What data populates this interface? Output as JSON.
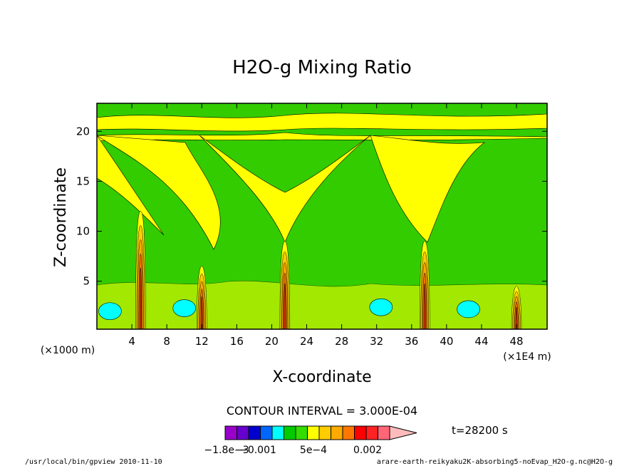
{
  "chart_data": {
    "type": "contour",
    "title": "H2O-g Mixing Ratio",
    "xlabel": "X-coordinate",
    "ylabel": "Z-coordinate",
    "x_unit_left": "(×1000 m)",
    "x_unit_right": "(×1E4 m)",
    "xticks": [
      4,
      8,
      12,
      16,
      20,
      24,
      28,
      32,
      36,
      40,
      44,
      48
    ],
    "yticks": [
      5,
      10,
      15,
      20
    ],
    "xlim": [
      0,
      51.5
    ],
    "ylim": [
      0.2,
      22.8
    ],
    "contour_interval": "CONTOUR INTERVAL = 3.000E-04",
    "colorbar_labels": [
      "−1.8e−3",
      "−0.001",
      "5e−4",
      "0.002"
    ],
    "colorbar_colors": [
      "#9900cc",
      "#6600cc",
      "#0000cc",
      "#0066ff",
      "#00ffff",
      "#00cc00",
      "#33dd00",
      "#ffff00",
      "#ffcc00",
      "#ffaa00",
      "#ff7700",
      "#ff0000",
      "#ff2222",
      "#ff6677",
      "#ffbbbb"
    ],
    "time_label": "t=28200 s",
    "background_color": "#33cc00",
    "plumes": [
      {
        "x": 5.0,
        "top": 12.0
      },
      {
        "x": 12.0,
        "top": 6.5
      },
      {
        "x": 21.5,
        "top": 9.0
      },
      {
        "x": 37.5,
        "top": 9.0
      },
      {
        "x": 48.0,
        "top": 4.5
      }
    ],
    "dry_patches": [
      {
        "x": 1.5,
        "z": 2.0
      },
      {
        "x": 10.0,
        "z": 2.3
      },
      {
        "x": 32.5,
        "z": 2.4
      },
      {
        "x": 42.5,
        "z": 2.2
      }
    ]
  },
  "footer": {
    "left": "/usr/local/bin/gpview  2010-11-10",
    "right": "arare-earth-reikyaku2K-absorbing5-noEvap_H2O-g.nc@H2O-g"
  }
}
